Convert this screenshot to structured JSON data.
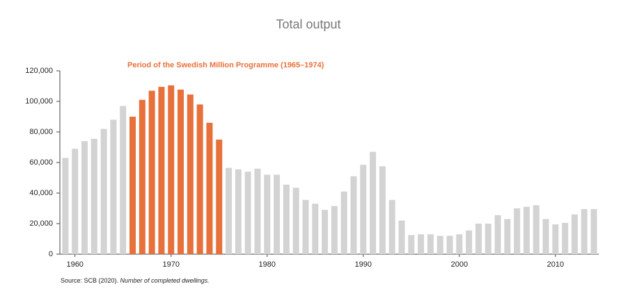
{
  "chart_data": {
    "type": "bar",
    "title": "Total output",
    "annotation": "Period of the Swedish Million Programme (1965–1974)",
    "source": "Source: SCB (2020). ",
    "source_note": "Number of completed dwellings.",
    "categories": [
      null,
      "1960",
      null,
      null,
      null,
      null,
      null,
      null,
      null,
      null,
      null,
      "1970",
      null,
      null,
      null,
      null,
      null,
      null,
      null,
      null,
      null,
      "1980",
      null,
      null,
      null,
      null,
      null,
      null,
      null,
      null,
      null,
      "1990",
      null,
      null,
      null,
      null,
      null,
      null,
      null,
      null,
      null,
      "2000",
      null,
      null,
      null,
      null,
      null,
      null,
      null,
      null,
      null,
      "2010",
      null,
      null,
      null,
      null
    ],
    "values": [
      63000,
      69000,
      74000,
      75500,
      82000,
      88000,
      97000,
      90000,
      101000,
      107000,
      109500,
      110500,
      107700,
      104500,
      98000,
      86000,
      75000,
      56500,
      55500,
      54000,
      56000,
      52000,
      52000,
      45500,
      43500,
      35500,
      33000,
      29000,
      31500,
      41000,
      51000,
      58500,
      67000,
      57500,
      35500,
      22000,
      12500,
      13000,
      13000,
      12000,
      12000,
      13000,
      15500,
      20000,
      20000,
      25500,
      23000,
      30000,
      31000,
      32000,
      23000,
      19500,
      20500,
      26000,
      29500,
      29500
    ],
    "colors": [
      "#d3d3d3",
      "#d3d3d3",
      "#d3d3d3",
      "#d3d3d3",
      "#d3d3d3",
      "#d3d3d3",
      "#d3d3d3",
      "#e8703a",
      "#e8703a",
      "#e8703a",
      "#e8703a",
      "#e8703a",
      "#e8703a",
      "#e8703a",
      "#e8703a",
      "#e8703a",
      "#e8703a",
      "#d3d3d3",
      "#d3d3d3",
      "#d3d3d3",
      "#d3d3d3",
      "#d3d3d3",
      "#d3d3d3",
      "#d3d3d3",
      "#d3d3d3",
      "#d3d3d3",
      "#d3d3d3",
      "#d3d3d3",
      "#d3d3d3",
      "#d3d3d3",
      "#d3d3d3",
      "#d3d3d3",
      "#d3d3d3",
      "#d3d3d3",
      "#d3d3d3",
      "#d3d3d3",
      "#d3d3d3",
      "#d3d3d3",
      "#d3d3d3",
      "#d3d3d3",
      "#d3d3d3",
      "#d3d3d3",
      "#d3d3d3",
      "#d3d3d3",
      "#d3d3d3",
      "#d3d3d3",
      "#d3d3d3",
      "#d3d3d3",
      "#d3d3d3",
      "#d3d3d3",
      "#d3d3d3",
      "#d3d3d3",
      "#d3d3d3",
      "#d3d3d3",
      "#d3d3d3",
      "#d3d3d3"
    ],
    "annotation_color": "#e8703a",
    "ylim": [
      0,
      120000
    ],
    "yticks": [
      0,
      {
        "value": 20000,
        "label": "20,000"
      },
      {
        "value": 40000,
        "label": "40,000"
      },
      {
        "value": 60000,
        "label": "60,000"
      },
      {
        "value": 80000,
        "label": "80,000"
      },
      {
        "value": 100000,
        "label": "100,000"
      },
      {
        "value": 120000,
        "label": "120,000"
      }
    ],
    "grid": false
  }
}
